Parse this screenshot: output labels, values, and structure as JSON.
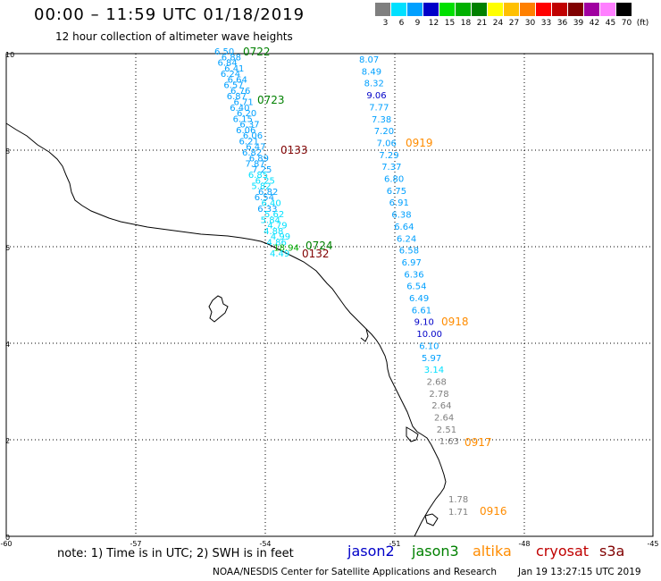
{
  "header": {
    "title": "00:00 – 11:59 UTC 01/18/2019",
    "subtitle": "12 hour collection of altimeter wave heights"
  },
  "colorscale": {
    "labels": [
      "3",
      "6",
      "9",
      "12",
      "15",
      "18",
      "21",
      "24",
      "27",
      "30",
      "33",
      "36",
      "39",
      "42",
      "45",
      "70",
      "(ft)"
    ],
    "colors": [
      "#7f7f7f",
      "#00e0ff",
      "#00a0ff",
      "#0000c8",
      "#00e000",
      "#00b000",
      "#008000",
      "#ffff00",
      "#ffc000",
      "#ff8000",
      "#ff0000",
      "#c00000",
      "#800000",
      "#a000a0",
      "#ff80ff",
      "#000000"
    ]
  },
  "axes": {
    "x_ticks": [
      "-60",
      "-57",
      "-54",
      "-51",
      "-48",
      "-45"
    ],
    "y_ticks": [
      "10",
      "8",
      "6",
      "4",
      "2",
      "0"
    ]
  },
  "tracks": [
    {
      "name": "track-a",
      "points": [
        {
          "t": "6.50",
          "c": "#00a0ff"
        },
        {
          "t": "6.88",
          "c": "#00a0ff"
        },
        {
          "t": "6.84",
          "c": "#00a0ff"
        },
        {
          "t": "6.41",
          "c": "#00a0ff"
        },
        {
          "t": "6.24",
          "c": "#00a0ff"
        },
        {
          "t": "6.64",
          "c": "#00a0ff"
        },
        {
          "t": "6.57",
          "c": "#00a0ff"
        },
        {
          "t": "6.76",
          "c": "#00a0ff"
        },
        {
          "t": "6.87",
          "c": "#00a0ff"
        },
        {
          "t": "6.71",
          "c": "#00a0ff"
        },
        {
          "t": "6.40",
          "c": "#00a0ff"
        },
        {
          "t": "6.20",
          "c": "#00a0ff"
        },
        {
          "t": "6.15",
          "c": "#00a0ff"
        },
        {
          "t": "6.37",
          "c": "#00a0ff"
        },
        {
          "t": "6.06",
          "c": "#00a0ff"
        },
        {
          "t": "6.06",
          "c": "#00a0ff"
        },
        {
          "t": "6.21",
          "c": "#00a0ff"
        },
        {
          "t": "6.47",
          "c": "#00a0ff"
        },
        {
          "t": "6.82",
          "c": "#00a0ff"
        },
        {
          "t": "6.89",
          "c": "#00a0ff"
        },
        {
          "t": "7.87",
          "c": "#00a0ff"
        },
        {
          "t": "7.25",
          "c": "#00a0ff"
        },
        {
          "t": "6.85",
          "c": "#00e0ff"
        },
        {
          "t": "6.25",
          "c": "#00e0ff"
        },
        {
          "t": "5.82",
          "c": "#00e0ff"
        },
        {
          "t": "6.82",
          "c": "#00a0ff"
        },
        {
          "t": "6.54",
          "c": "#00a0ff"
        },
        {
          "t": "6.40",
          "c": "#00e0ff"
        },
        {
          "t": "6.33",
          "c": "#00a0ff"
        },
        {
          "t": "5.62",
          "c": "#00e0ff"
        },
        {
          "t": "5.84",
          "c": "#00e0ff"
        },
        {
          "t": "4.79",
          "c": "#00e0ff"
        },
        {
          "t": "4.88",
          "c": "#00e0ff"
        },
        {
          "t": "4.99",
          "c": "#00e0ff"
        },
        {
          "t": "4.86",
          "c": "#00e0ff"
        },
        {
          "t": "18.94",
          "c": "#00b000"
        },
        {
          "t": "4.49",
          "c": "#00e0ff"
        }
      ],
      "time_labels": [
        {
          "t": "0722",
          "c": "#008000"
        },
        {
          "t": "0723",
          "c": "#008000"
        },
        {
          "t": "0133",
          "c": "#800000"
        },
        {
          "t": "0724",
          "c": "#008000"
        },
        {
          "t": "0132",
          "c": "#800000"
        }
      ]
    },
    {
      "name": "track-b",
      "points": [
        {
          "t": "8.07",
          "c": "#00a0ff"
        },
        {
          "t": "8.49",
          "c": "#00a0ff"
        },
        {
          "t": "8.32",
          "c": "#00a0ff"
        },
        {
          "t": "9.06",
          "c": "#0000c8"
        },
        {
          "t": "7.77",
          "c": "#00a0ff"
        },
        {
          "t": "7.38",
          "c": "#00a0ff"
        },
        {
          "t": "7.20",
          "c": "#00a0ff"
        },
        {
          "t": "7.06",
          "c": "#00a0ff"
        },
        {
          "t": "7.29",
          "c": "#00a0ff"
        },
        {
          "t": "7.37",
          "c": "#00a0ff"
        },
        {
          "t": "6.80",
          "c": "#00a0ff"
        },
        {
          "t": "6.75",
          "c": "#00a0ff"
        },
        {
          "t": "6.91",
          "c": "#00a0ff"
        },
        {
          "t": "6.38",
          "c": "#00a0ff"
        },
        {
          "t": "6.64",
          "c": "#00a0ff"
        },
        {
          "t": "6.24",
          "c": "#00a0ff"
        },
        {
          "t": "6.58",
          "c": "#00a0ff"
        },
        {
          "t": "6.97",
          "c": "#00a0ff"
        },
        {
          "t": "6.36",
          "c": "#00a0ff"
        },
        {
          "t": "6.54",
          "c": "#00a0ff"
        },
        {
          "t": "6.49",
          "c": "#00a0ff"
        },
        {
          "t": "6.61",
          "c": "#00a0ff"
        },
        {
          "t": "9.10",
          "c": "#0000c8"
        },
        {
          "t": "10.00",
          "c": "#0000c8"
        },
        {
          "t": "6.10",
          "c": "#00a0ff"
        },
        {
          "t": "5.97",
          "c": "#00a0ff"
        },
        {
          "t": "3.14",
          "c": "#00e0ff"
        },
        {
          "t": "2.68",
          "c": "#7f7f7f"
        },
        {
          "t": "2.78",
          "c": "#7f7f7f"
        },
        {
          "t": "2.64",
          "c": "#7f7f7f"
        },
        {
          "t": "2.64",
          "c": "#7f7f7f"
        },
        {
          "t": "2.51",
          "c": "#7f7f7f"
        },
        {
          "t": "1.63",
          "c": "#7f7f7f"
        },
        {
          "t": "1.78",
          "c": "#7f7f7f"
        },
        {
          "t": "1.71",
          "c": "#7f7f7f"
        }
      ],
      "time_labels": [
        {
          "t": "0919",
          "c": "#ff8c00"
        },
        {
          "t": "0918",
          "c": "#ff8c00"
        },
        {
          "t": "0917",
          "c": "#ff8c00"
        },
        {
          "t": "0916",
          "c": "#ff8c00"
        }
      ]
    }
  ],
  "footer": {
    "note": "note:  1) Time is in UTC;  2) SWH is in feet",
    "satellites": [
      {
        "label": "jason2",
        "color": "#0000c8"
      },
      {
        "label": "jason3",
        "color": "#008000"
      },
      {
        "label": "altika",
        "color": "#ff8c00"
      },
      {
        "label": "cryosat",
        "color": "#c00000"
      },
      {
        "label": "s3a",
        "color": "#800000"
      }
    ],
    "credit": "NOAA/NESDIS Center for Satellite Applications and Research",
    "timestamp": "Jan 19 13:27:15 UTC 2019"
  }
}
